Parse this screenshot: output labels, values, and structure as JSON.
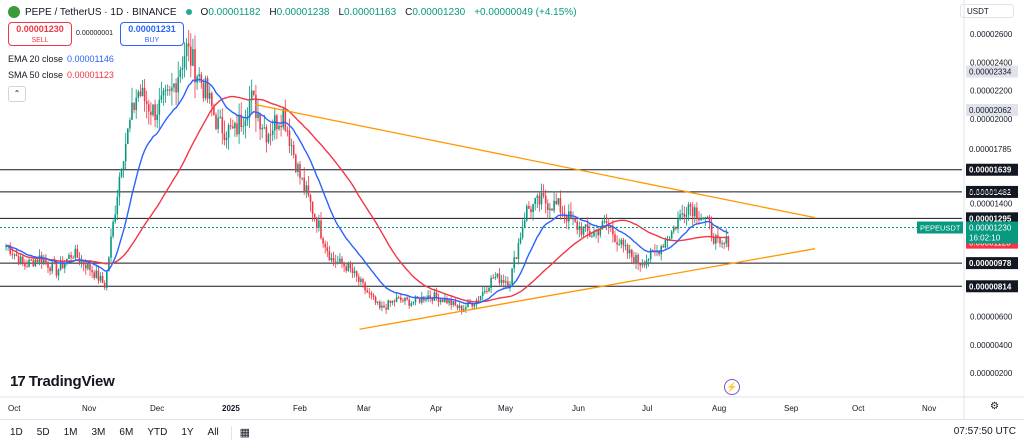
{
  "header": {
    "symbol": "PEPE / TetherUS · 1D · BINANCE",
    "ohlc": [
      {
        "label": "O",
        "value": "0.00001182"
      },
      {
        "label": "H",
        "value": "0.00001238"
      },
      {
        "label": "L",
        "value": "0.00001163"
      },
      {
        "label": "C",
        "value": "0.00001230"
      }
    ],
    "change": "+0.00000049 (+4.15%)"
  },
  "trade": {
    "sell_price": "0.00001230",
    "sell_label": "SELL",
    "buy_price": "0.00001231",
    "buy_label": "BUY",
    "spread": "0.00000001"
  },
  "indicators": {
    "ema_label": "EMA 20 close",
    "ema_value": "0.00001146",
    "sma_label": "SMA 50 close",
    "sma_value": "0.00001123"
  },
  "currency": "USDT",
  "logo": "TradingView",
  "toolbar": {
    "timeframes": [
      "1D",
      "5D",
      "1M",
      "3M",
      "6M",
      "YTD",
      "1Y",
      "All"
    ],
    "clock": "07:57:50 UTC"
  },
  "colors": {
    "up": "#089981",
    "down": "#f23645",
    "ema": "#2962ff",
    "sma": "#f23645",
    "trendline": "#ff9800",
    "level": "#131722"
  },
  "chart_data": {
    "type": "candlestick",
    "ylim": [
      1e-07,
      2.7e-06
    ],
    "y_ticks": [
      {
        "value": 2.6e-06,
        "label": "0.00002600"
      },
      {
        "value": 2.4e-06,
        "label": "0.00002400"
      },
      {
        "value": 2.2e-06,
        "label": "0.00002200"
      },
      {
        "value": 2e-06,
        "label": "0.00002000"
      },
      {
        "value": 1.4e-06,
        "label": "0.00001400"
      },
      {
        "value": 6e-07,
        "label": "0.00000600"
      },
      {
        "value": 4e-07,
        "label": "0.00000400"
      },
      {
        "value": 2e-07,
        "label": "0.00000200"
      }
    ],
    "x_ticks": [
      {
        "label": "Oct",
        "bold": false
      },
      {
        "label": "Nov",
        "bold": false
      },
      {
        "label": "Dec",
        "bold": false
      },
      {
        "label": "2025",
        "bold": true
      },
      {
        "label": "Feb",
        "bold": false
      },
      {
        "label": "Mar",
        "bold": false
      },
      {
        "label": "Apr",
        "bold": false
      },
      {
        "label": "May",
        "bold": false
      },
      {
        "label": "Jun",
        "bold": false
      },
      {
        "label": "Jul",
        "bold": false
      },
      {
        "label": "Aug",
        "bold": false
      },
      {
        "label": "Sep",
        "bold": false
      },
      {
        "label": "Oct",
        "bold": false
      },
      {
        "label": "Nov",
        "bold": false
      }
    ],
    "horizontal_levels": [
      {
        "value": 1.639e-06,
        "label": "0.00001639"
      },
      {
        "value": 1.482e-06,
        "label": "0.00001482"
      },
      {
        "value": 1.295e-06,
        "label": "0.00001295"
      },
      {
        "value": 9.78e-07,
        "label": "0.00000978"
      },
      {
        "value": 8.14e-07,
        "label": "0.00000814"
      }
    ],
    "price_labels": [
      {
        "value": 2.334e-06,
        "label": "0.00002334",
        "style": "grey"
      },
      {
        "value": 2.062e-06,
        "label": "0.00002062",
        "style": "grey"
      },
      {
        "value": 1.785e-06,
        "label": "0.00001785",
        "style": "plain"
      },
      {
        "value": 1.489e-06,
        "label": "0.00001489",
        "style": "plain"
      },
      {
        "value": 1.146e-06,
        "label": "0.00001146",
        "style": "blue"
      },
      {
        "value": 1.123e-06,
        "label": "0.00001123",
        "style": "red"
      }
    ],
    "current": {
      "value": 1.23e-06,
      "label": "0.00001230",
      "symbol": "PEPEUSDT",
      "countdown": "16:02:10"
    },
    "trendlines": [
      {
        "from": [
          "2025-01-16",
          2.1e-06
        ],
        "to": [
          "2025-09-15",
          1.3e-06
        ]
      },
      {
        "from": [
          "2025-03-02",
          5.1e-07
        ],
        "to": [
          "2025-09-15",
          1.08e-06
        ]
      }
    ],
    "series": [
      {
        "name": "EMA 20 close",
        "last": 1.146e-06
      },
      {
        "name": "SMA 50 close",
        "last": 1.123e-06
      }
    ],
    "candles": [
      [
        "2024-10-01",
        1.1e-06,
        9.6e-07
      ],
      [
        "2024-10-08",
        9.6e-07,
        1.02e-06
      ],
      [
        "2024-10-15",
        1.02e-06,
        9.2e-07
      ],
      [
        "2024-10-22",
        9.2e-07,
        1.05e-06
      ],
      [
        "2024-10-29",
        1.05e-06,
        9.5e-07
      ],
      [
        "2024-11-05",
        9.5e-07,
        8.2e-07
      ],
      [
        "2024-11-12",
        8.2e-07,
        1.7e-06
      ],
      [
        "2024-11-19",
        1.7e-06,
        2.2e-06
      ],
      [
        "2024-11-26",
        2.2e-06,
        2.05e-06
      ],
      [
        "2024-12-03",
        2.05e-06,
        2.15e-06
      ],
      [
        "2024-12-10",
        2.15e-06,
        2.5e-06
      ],
      [
        "2024-12-17",
        2.5e-06,
        2.25e-06
      ],
      [
        "2024-12-24",
        2.25e-06,
        1.95e-06
      ],
      [
        "2024-12-31",
        1.95e-06,
        1.9e-06
      ],
      [
        "2025-01-07",
        1.9e-06,
        2.15e-06
      ],
      [
        "2025-01-14",
        2.15e-06,
        1.9e-06
      ],
      [
        "2025-01-21",
        1.9e-06,
        2.05e-06
      ],
      [
        "2025-01-28",
        2.05e-06,
        1.6e-06
      ],
      [
        "2025-02-04",
        1.6e-06,
        1.3e-06
      ],
      [
        "2025-02-11",
        1.3e-06,
        1e-06
      ],
      [
        "2025-02-18",
        1e-06,
        9.5e-07
      ],
      [
        "2025-02-25",
        9.5e-07,
        8e-07
      ],
      [
        "2025-03-04",
        8e-07,
        6.5e-07
      ],
      [
        "2025-03-11",
        6.5e-07,
        7.2e-07
      ],
      [
        "2025-03-18",
        7.2e-07,
        7e-07
      ],
      [
        "2025-03-25",
        7e-07,
        7.5e-07
      ],
      [
        "2025-04-01",
        7.5e-07,
        7.2e-07
      ],
      [
        "2025-04-08",
        7.2e-07,
        6.5e-07
      ],
      [
        "2025-04-15",
        6.5e-07,
        7.2e-07
      ],
      [
        "2025-04-22",
        7.2e-07,
        8.8e-07
      ],
      [
        "2025-04-29",
        8.8e-07,
        8.5e-07
      ],
      [
        "2025-05-06",
        8.5e-07,
        1.35e-06
      ],
      [
        "2025-05-13",
        1.35e-06,
        1.42e-06
      ],
      [
        "2025-05-20",
        1.42e-06,
        1.38e-06
      ],
      [
        "2025-05-27",
        1.38e-06,
        1.25e-06
      ],
      [
        "2025-06-03",
        1.25e-06,
        1.18e-06
      ],
      [
        "2025-06-10",
        1.18e-06,
        1.26e-06
      ],
      [
        "2025-06-17",
        1.26e-06,
        1.08e-06
      ],
      [
        "2025-06-24",
        1.08e-06,
        9.8e-07
      ],
      [
        "2025-07-01",
        9.8e-07,
        1.05e-06
      ],
      [
        "2025-07-08",
        1.05e-06,
        1.2e-06
      ],
      [
        "2025-07-15",
        1.2e-06,
        1.4e-06
      ],
      [
        "2025-07-22",
        1.4e-06,
        1.3e-06
      ],
      [
        "2025-07-29",
        1.3e-06,
        1.08e-06
      ],
      [
        "2025-08-05",
        1.08e-06,
        1.23e-06
      ]
    ]
  }
}
